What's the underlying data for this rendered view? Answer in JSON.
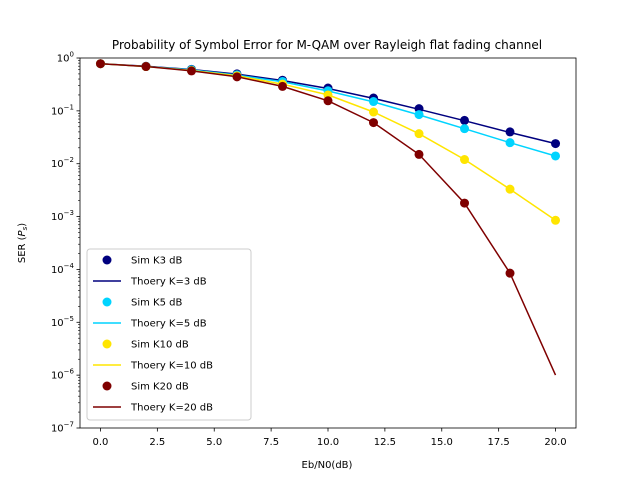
{
  "chart_data": {
    "type": "line",
    "title": "Probability of Symbol Error for M-QAM over Rayleigh flat fading channel",
    "xlabel": "Eb/N0(dB)",
    "ylabel": "SER (Ps)",
    "ylabel_main": "SER (",
    "ylabel_sym": "P",
    "ylabel_sub": "s",
    "ylabel_close": ")",
    "y_scale": "log",
    "xlim": [
      -0.9,
      20.9
    ],
    "ylim": [
      1e-07,
      1
    ],
    "x_ticks": [
      0,
      2.5,
      5,
      7.5,
      10,
      12.5,
      15,
      17.5,
      20
    ],
    "x_tick_labels": [
      "0.0",
      "2.5",
      "5.0",
      "7.5",
      "10.0",
      "12.5",
      "15.0",
      "17.5",
      "20.0"
    ],
    "y_tick_exponents": [
      0,
      -1,
      -2,
      -3,
      -4,
      -5,
      -6,
      -7
    ],
    "y_tick_base": "10",
    "grid": false,
    "legend_position": "lower-left",
    "x": [
      0,
      2,
      4,
      6,
      8,
      10,
      12,
      14,
      16,
      18,
      20
    ],
    "series": [
      {
        "sim_name": "Sim K3 dB",
        "theory_name": "Thoery K=3 dB",
        "color": "#00007f",
        "sim_values": [
          0.78,
          0.7,
          0.61,
          0.5,
          0.38,
          0.27,
          0.175,
          0.11,
          0.066,
          0.04,
          0.024
        ],
        "theory_values": [
          0.78,
          0.7,
          0.605,
          0.495,
          0.375,
          0.265,
          0.172,
          0.107,
          0.065,
          0.039,
          0.024
        ]
      },
      {
        "sim_name": "Sim K5 dB",
        "theory_name": "Thoery K=5 dB",
        "color": "#00d4ff",
        "sim_values": [
          0.78,
          0.69,
          0.6,
          0.48,
          0.36,
          0.24,
          0.15,
          0.085,
          0.046,
          0.025,
          0.014
        ],
        "theory_values": [
          0.78,
          0.69,
          0.595,
          0.475,
          0.355,
          0.238,
          0.148,
          0.084,
          0.046,
          0.025,
          0.014
        ]
      },
      {
        "sim_name": "Sim K10 dB",
        "theory_name": "Thoery K=10 dB",
        "color": "#ffe500",
        "sim_values": [
          0.78,
          0.69,
          0.58,
          0.46,
          0.32,
          0.2,
          0.095,
          0.037,
          0.012,
          0.0033,
          0.00085
        ],
        "theory_values": [
          0.78,
          0.69,
          0.58,
          0.46,
          0.32,
          0.2,
          0.095,
          0.037,
          0.012,
          0.0033,
          0.00085
        ]
      },
      {
        "sim_name": "Sim K20 dB",
        "theory_name": "Thoery K=20 dB",
        "color": "#7f0000",
        "sim_values": [
          0.78,
          0.69,
          0.57,
          0.44,
          0.29,
          0.155,
          0.06,
          0.015,
          0.0018,
          8.5e-05,
          null
        ],
        "theory_values": [
          0.78,
          0.69,
          0.57,
          0.44,
          0.29,
          0.155,
          0.06,
          0.015,
          0.0018,
          8.5e-05,
          1e-06
        ]
      }
    ]
  }
}
